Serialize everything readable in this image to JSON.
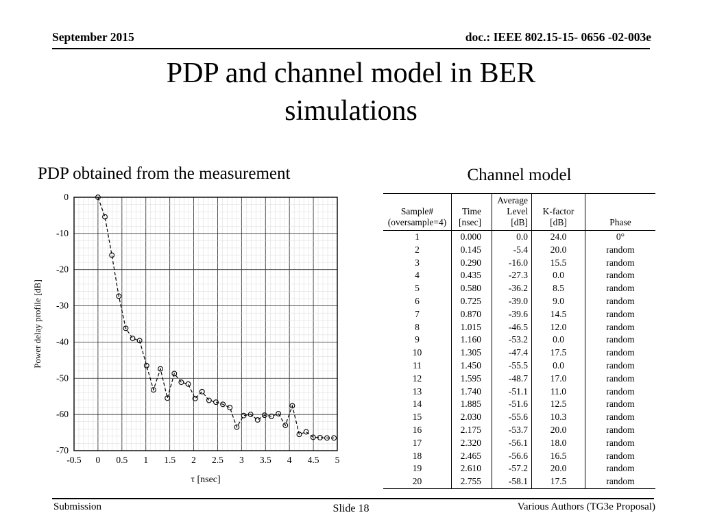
{
  "header": {
    "date": "September 2015",
    "doc_number": "doc.: IEEE 802.15-15- 0656 -02-003e"
  },
  "title": {
    "lines": [
      "PDP and channel model in BER",
      "simulations"
    ]
  },
  "sections": {
    "left_heading": "PDP obtained from the measurement",
    "right_heading": "Channel model"
  },
  "chart_data": {
    "type": "line",
    "title": "",
    "xlabel": "τ [nsec]",
    "ylabel": "Power delay profile [dB]",
    "xlim": [
      -0.5,
      5
    ],
    "ylim": [
      -70,
      0
    ],
    "xticks": [
      "-0.5",
      "0",
      "0.5",
      "1",
      "1.5",
      "2",
      "2.5",
      "3",
      "3.5",
      "4",
      "4.5",
      "5"
    ],
    "yticks": [
      "0",
      "-10",
      "-20",
      "-30",
      "-40",
      "-50",
      "-60",
      "-70"
    ],
    "grid": "major+minor",
    "line_style": "dashed",
    "marker": "open-circle",
    "x": [
      0.0,
      0.145,
      0.29,
      0.435,
      0.58,
      0.725,
      0.87,
      1.015,
      1.16,
      1.305,
      1.45,
      1.595,
      1.74,
      1.885,
      2.03,
      2.175,
      2.32,
      2.465,
      2.61,
      2.755,
      2.9,
      3.045,
      3.19,
      3.335,
      3.48,
      3.625,
      3.77,
      3.915,
      4.06,
      4.205,
      4.35,
      4.495,
      4.64,
      4.785,
      4.93
    ],
    "y": [
      0.0,
      -5.4,
      -16.0,
      -27.3,
      -36.2,
      -39.0,
      -39.6,
      -46.5,
      -53.2,
      -47.4,
      -55.5,
      -48.7,
      -51.1,
      -51.6,
      -55.6,
      -53.7,
      -56.1,
      -56.6,
      -57.2,
      -58.1,
      -63.5,
      -60.3,
      -60.0,
      -61.5,
      -60.2,
      -60.5,
      -59.8,
      -63.0,
      -57.6,
      -65.5,
      -64.8,
      -66.3,
      -66.4,
      -66.5,
      -66.5
    ]
  },
  "table": {
    "headers": [
      [
        "Sample#",
        "(oversample=4)"
      ],
      [
        "Time",
        "[nsec]"
      ],
      [
        "Average",
        "Level",
        "[dB]"
      ],
      [
        "K-factor",
        "[dB]"
      ],
      [
        "Phase"
      ]
    ],
    "rows": [
      [
        "1",
        "0.000",
        "0.0",
        "24.0",
        "0°"
      ],
      [
        "2",
        "0.145",
        "-5.4",
        "20.0",
        "random"
      ],
      [
        "3",
        "0.290",
        "-16.0",
        "15.5",
        "random"
      ],
      [
        "4",
        "0.435",
        "-27.3",
        "0.0",
        "random"
      ],
      [
        "5",
        "0.580",
        "-36.2",
        "8.5",
        "random"
      ],
      [
        "6",
        "0.725",
        "-39.0",
        "9.0",
        "random"
      ],
      [
        "7",
        "0.870",
        "-39.6",
        "14.5",
        "random"
      ],
      [
        "8",
        "1.015",
        "-46.5",
        "12.0",
        "random"
      ],
      [
        "9",
        "1.160",
        "-53.2",
        "0.0",
        "random"
      ],
      [
        "10",
        "1.305",
        "-47.4",
        "17.5",
        "random"
      ],
      [
        "11",
        "1.450",
        "-55.5",
        "0.0",
        "random"
      ],
      [
        "12",
        "1.595",
        "-48.7",
        "17.0",
        "random"
      ],
      [
        "13",
        "1.740",
        "-51.1",
        "11.0",
        "random"
      ],
      [
        "14",
        "1.885",
        "-51.6",
        "12.5",
        "random"
      ],
      [
        "15",
        "2.030",
        "-55.6",
        "10.3",
        "random"
      ],
      [
        "16",
        "2.175",
        "-53.7",
        "20.0",
        "random"
      ],
      [
        "17",
        "2.320",
        "-56.1",
        "18.0",
        "random"
      ],
      [
        "18",
        "2.465",
        "-56.6",
        "16.5",
        "random"
      ],
      [
        "19",
        "2.610",
        "-57.2",
        "20.0",
        "random"
      ],
      [
        "20",
        "2.755",
        "-58.1",
        "17.5",
        "random"
      ]
    ]
  },
  "footer": {
    "left": "Submission",
    "center": "Slide 18",
    "right": "Various Authors (TG3e Proposal)"
  }
}
